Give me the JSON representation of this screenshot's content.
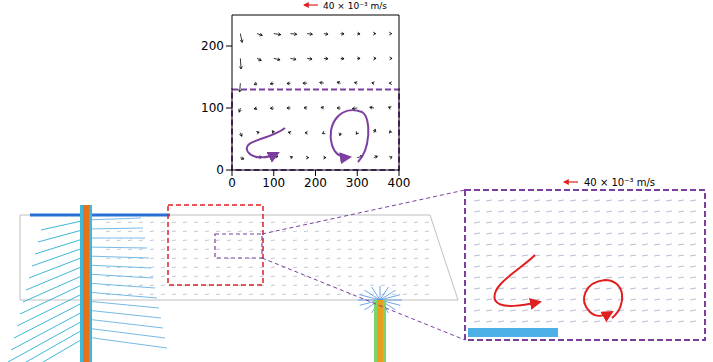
{
  "chart_data": {
    "type": "quiver",
    "scale_label": "40 × 10⁻³ m/s",
    "scale_value": 40,
    "xlim": [
      0,
      400
    ],
    "ylim": [
      0,
      250
    ],
    "xticks": [
      0,
      100,
      200,
      300,
      400
    ],
    "yticks": [
      0,
      100,
      200
    ],
    "color": "#000000",
    "highlight_region": {
      "xlim": [
        0,
        400
      ],
      "ylim": [
        0,
        130
      ],
      "color": "#7b3fa0"
    },
    "vectors": {
      "x": [
        20,
        60,
        100,
        140,
        180,
        220,
        260,
        300,
        340,
        380,
        20,
        60,
        100,
        140,
        180,
        220,
        260,
        300,
        340,
        380,
        20,
        60,
        100,
        140,
        180,
        220,
        260,
        300,
        340,
        380,
        20,
        60,
        100,
        140,
        180,
        220,
        260,
        300,
        340,
        380,
        20,
        60,
        100,
        140,
        180,
        220,
        260,
        300,
        340,
        380,
        20,
        60,
        100,
        140,
        180,
        220,
        260,
        300,
        340,
        380
      ],
      "y": [
        220,
        220,
        220,
        220,
        220,
        220,
        220,
        220,
        220,
        220,
        180,
        180,
        180,
        180,
        180,
        180,
        180,
        180,
        180,
        180,
        140,
        140,
        140,
        140,
        140,
        140,
        140,
        140,
        140,
        140,
        100,
        100,
        100,
        100,
        100,
        100,
        100,
        100,
        100,
        100,
        60,
        60,
        60,
        60,
        60,
        60,
        60,
        60,
        60,
        60,
        20,
        20,
        20,
        20,
        20,
        20,
        20,
        20,
        20,
        20
      ],
      "u": [
        5,
        15,
        20,
        18,
        15,
        12,
        10,
        8,
        5,
        3,
        2,
        12,
        18,
        16,
        14,
        12,
        10,
        8,
        6,
        4,
        -2,
        -8,
        -10,
        -10,
        -12,
        -12,
        -10,
        -8,
        -6,
        -4,
        -3,
        -8,
        -10,
        -10,
        -9,
        -8,
        -10,
        -14,
        -12,
        -6,
        4,
        6,
        -4,
        -6,
        -6,
        -4,
        -2,
        -3,
        4,
        -2,
        10,
        14,
        12,
        6,
        4,
        6,
        12,
        16,
        10,
        4
      ],
      "v": [
        -25,
        -5,
        -3,
        -2,
        -2,
        -2,
        -1,
        -1,
        0,
        0,
        -30,
        -6,
        -4,
        -3,
        -2,
        -1,
        -1,
        0,
        0,
        0,
        -25,
        -4,
        -2,
        -1,
        0,
        2,
        3,
        2,
        1,
        0,
        -12,
        -3,
        -1,
        0,
        1,
        2,
        0,
        -2,
        2,
        3,
        -10,
        2,
        6,
        2,
        0,
        -2,
        -8,
        -4,
        10,
        6,
        -4,
        2,
        4,
        2,
        0,
        0,
        2,
        4,
        4,
        2
      ]
    }
  },
  "simulation_panel": {
    "scale_label": "40 × 10⁻³ m/s"
  }
}
